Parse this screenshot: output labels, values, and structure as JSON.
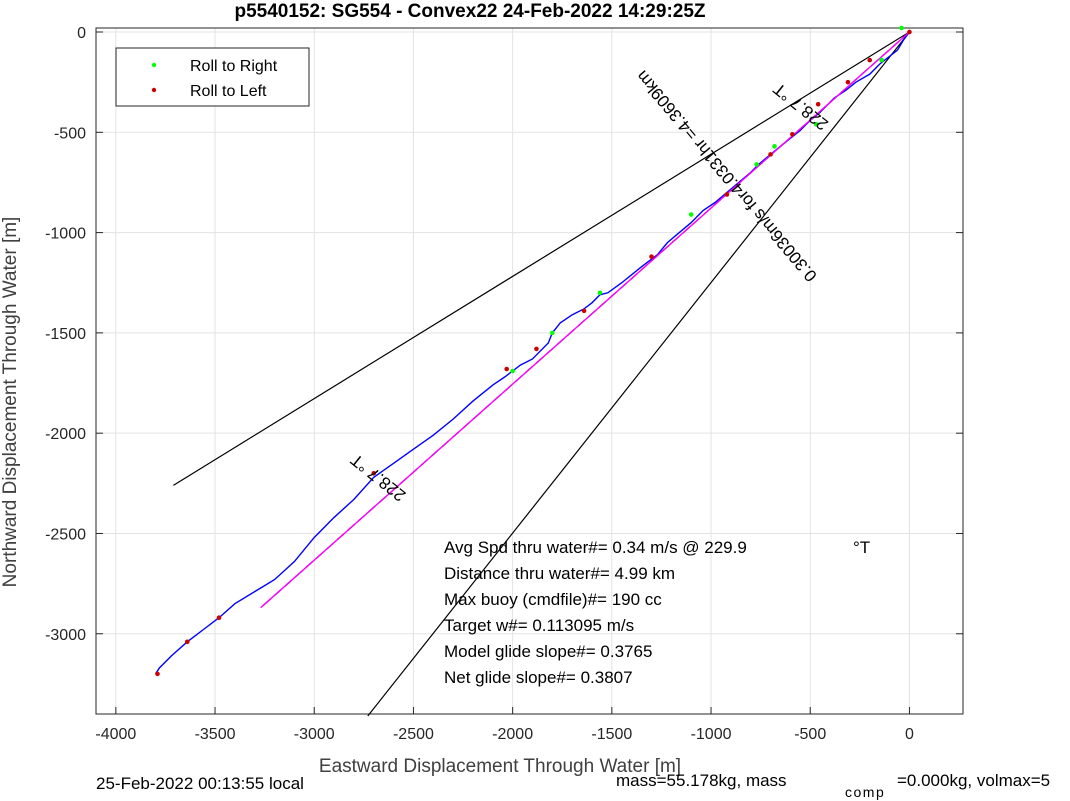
{
  "chart_data": {
    "type": "line",
    "title": "p5540152: SG554 - Convex22 24-Feb-2022 14:29:25Z",
    "xlabel": "Eastward Displacement Through Water [m]",
    "ylabel": "Northward Displacement Through Water [m]",
    "xlim": [
      -4100,
      270
    ],
    "ylim": [
      -3400,
      20
    ],
    "xticks": [
      -4000,
      -3500,
      -3000,
      -2500,
      -2000,
      -1500,
      -1000,
      -500,
      0
    ],
    "yticks": [
      0,
      -500,
      -1000,
      -1500,
      -2000,
      -2500,
      -3000
    ],
    "grid": true,
    "legend_placement": "top-left",
    "legend": [
      "Roll to Right",
      "Roll to Left"
    ],
    "colors": {
      "track": "#0000ff",
      "model": "#ff00ff",
      "roll_right": "#00ff00",
      "roll_left": "#cc0000",
      "lines": "#000000"
    },
    "series": [
      {
        "name": "",
        "role": "track",
        "x": [
          0,
          -30,
          -60,
          -150,
          -200,
          -270,
          -320,
          -380,
          -410,
          -450,
          -500,
          -550,
          -600,
          -650,
          -700,
          -760,
          -800,
          -860,
          -920,
          -980,
          -1040,
          -1100,
          -1160,
          -1220,
          -1270,
          -1350,
          -1400,
          -1450,
          -1520,
          -1560,
          -1600,
          -1640,
          -1700,
          -1760,
          -1800,
          -1820,
          -1860,
          -1900,
          -1960,
          -2000,
          -2040,
          -2100,
          -2200,
          -2300,
          -2400,
          -2500,
          -2600,
          -2700,
          -2800,
          -2900,
          -3000,
          -3100,
          -3200,
          -3300,
          -3400,
          -3480,
          -3560,
          -3640,
          -3720,
          -3780,
          -3800
        ],
        "y": [
          0,
          -40,
          -90,
          -160,
          -210,
          -250,
          -290,
          -330,
          -360,
          -400,
          -440,
          -490,
          -530,
          -570,
          -610,
          -660,
          -700,
          -750,
          -800,
          -850,
          -890,
          -950,
          -1000,
          -1050,
          -1110,
          -1170,
          -1210,
          -1250,
          -1300,
          -1310,
          -1350,
          -1380,
          -1410,
          -1450,
          -1500,
          -1550,
          -1590,
          -1630,
          -1660,
          -1690,
          -1720,
          -1760,
          -1840,
          -1930,
          -2010,
          -2080,
          -2150,
          -2220,
          -2330,
          -2420,
          -2520,
          -2640,
          -2730,
          -2790,
          -2850,
          -2920,
          -2980,
          -3040,
          -3110,
          -3170,
          -3200
        ]
      },
      {
        "name": "",
        "role": "model",
        "x": [
          0,
          -3270
        ],
        "y": [
          0,
          -2870
        ]
      },
      {
        "name": "Roll to Right",
        "role": "roll_right",
        "x": [
          -40,
          -140,
          -470,
          -680,
          -770,
          -1100,
          -1560,
          -1800,
          -2000
        ],
        "y": [
          20,
          -140,
          -460,
          -570,
          -660,
          -910,
          -1300,
          -1500,
          -1690
        ]
      },
      {
        "name": "Roll to Left",
        "role": "roll_left",
        "x": [
          0,
          -200,
          -310,
          -460,
          -590,
          -700,
          -920,
          -1300,
          -1640,
          -1880,
          -2030,
          -2700,
          -3480,
          -3640,
          -3790
        ],
        "y": [
          0,
          -140,
          -250,
          -360,
          -510,
          -610,
          -810,
          -1120,
          -1390,
          -1580,
          -1680,
          -2200,
          -2920,
          -3040,
          -3200
        ]
      }
    ],
    "reference_lines": [
      {
        "x": [
          0,
          -3710
        ],
        "y": [
          0,
          -2260
        ]
      },
      {
        "x": [
          0,
          -2730
        ],
        "y": [
          0,
          -3410
        ]
      }
    ],
    "annotations": [
      {
        "text": "228.7 °T",
        "x": -2660,
        "y": -2200,
        "angle": 218.7
      },
      {
        "text": "228.7 °T",
        "x": -530,
        "y": -350,
        "angle": 218.7
      },
      {
        "text": "0.30036m/s for4.0331hr =4.3609km",
        "x": -900,
        "y": -700,
        "angle": 229.9
      }
    ],
    "stats": [
      {
        "label": "Avg Spd thru water#=  0.34 m/s @ 229.9",
        "unit": "°T"
      },
      {
        "label": "Distance thru water#=  4.99 km"
      },
      {
        "label": "Max buoy (cmdfile)#= 190 cc"
      },
      {
        "label": "Target w#= 0.113095 m/s"
      },
      {
        "label": "Model glide slope#= 0.3765"
      },
      {
        "label": "Net glide slope#= 0.3807"
      }
    ],
    "footer": {
      "local_time": "25-Feb-2022 00:13:55 local",
      "mass_a": "mass=55.178kg, mass",
      "mass_sub": "comp",
      "mass_b": "=0.000kg, volmax=5"
    }
  }
}
